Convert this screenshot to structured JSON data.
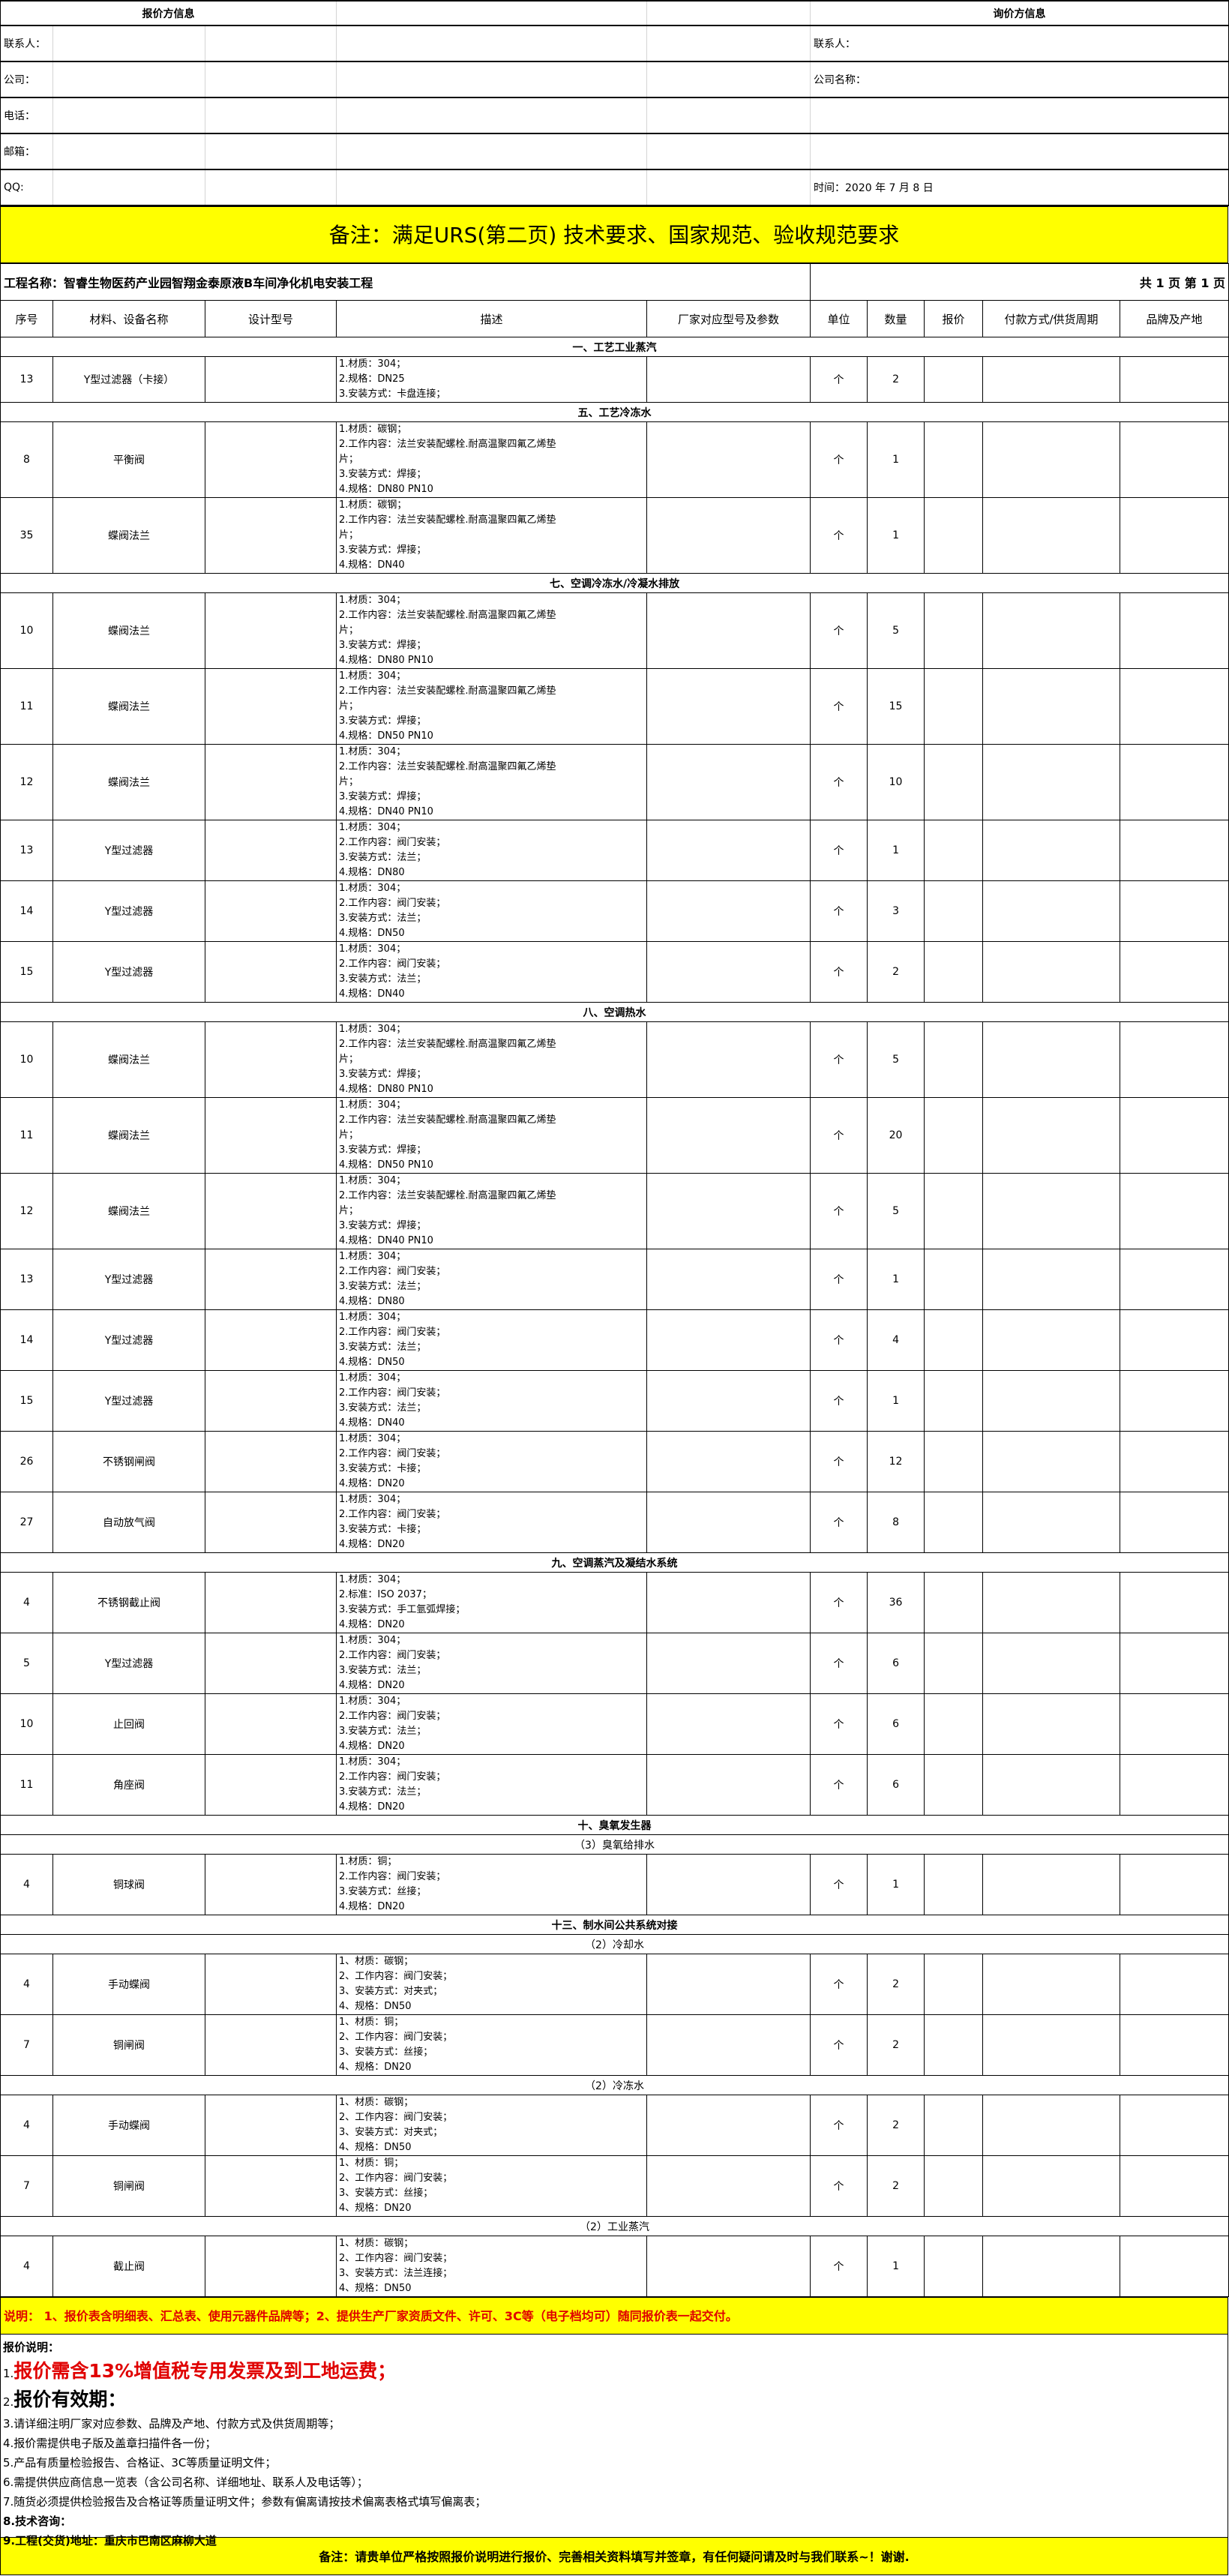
{
  "info": {
    "quoter_title": "报价方信息",
    "inquirer_title": "询价方信息",
    "left": [
      "联系人：",
      "公司：",
      "电话：",
      "邮箱：",
      "QQ:"
    ],
    "right": [
      "联系人：",
      "公司名称：",
      "",
      "",
      "时间：2020 年 7 月  8  日"
    ]
  },
  "banner": "备注：满足URS(第二页) 技术要求、国家规范、验收规范要求",
  "project": {
    "name": "工程名称：智睿生物医药产业园智翔金泰原液B车间净化机电安装工程",
    "pages": "共 1 页   第 1 页"
  },
  "columns": [
    "序号",
    "材料、设备名称",
    "设计型号",
    "描述",
    "厂家对应型号及参数",
    "单位",
    "数量",
    "报价",
    "付款方式/供货周期",
    "品牌及产地"
  ],
  "table": {
    "rows": [
      {
        "type": "section",
        "label": "一、工艺工业蒸汽"
      },
      {
        "type": "item",
        "no": "13",
        "name": "Y型过滤器（卡接）",
        "desc": [
          "1.材质：304；",
          "2.规格：DN25",
          "3.安装方式：卡盘连接；"
        ],
        "unit": "个",
        "qty": "2"
      },
      {
        "type": "section",
        "label": "五、工艺冷冻水"
      },
      {
        "type": "item",
        "no": "8",
        "name": "平衡阀",
        "desc": [
          "1.材质：碳钢；",
          "2.工作内容：法兰安装配螺栓.耐高温聚四氟乙烯垫",
          "片；",
          "3.安装方式：焊接；",
          "4.规格：DN80  PN10"
        ],
        "unit": "个",
        "qty": "1"
      },
      {
        "type": "item",
        "no": "35",
        "name": "蝶阀法兰",
        "desc": [
          "1.材质：碳钢；",
          "2.工作内容：法兰安装配螺栓.耐高温聚四氟乙烯垫",
          "片；",
          "3.安装方式：焊接；",
          "4.规格：DN40"
        ],
        "unit": "个",
        "qty": "1"
      },
      {
        "type": "section",
        "label": "七、空调冷冻水/冷凝水排放"
      },
      {
        "type": "item",
        "no": "10",
        "name": "蝶阀法兰",
        "desc": [
          "1.材质：304；",
          "2.工作内容：法兰安装配螺栓.耐高温聚四氟乙烯垫",
          "片；",
          "3.安装方式：焊接；",
          "4.规格：DN80  PN10"
        ],
        "unit": "个",
        "qty": "5"
      },
      {
        "type": "item",
        "no": "11",
        "name": "蝶阀法兰",
        "desc": [
          "1.材质：304；",
          "2.工作内容：法兰安装配螺栓.耐高温聚四氟乙烯垫",
          "片；",
          "3.安装方式：焊接；",
          "4.规格：DN50  PN10"
        ],
        "unit": "个",
        "qty": "15"
      },
      {
        "type": "item",
        "no": "12",
        "name": "蝶阀法兰",
        "desc": [
          "1.材质：304；",
          "2.工作内容：法兰安装配螺栓.耐高温聚四氟乙烯垫",
          "片；",
          "3.安装方式：焊接；",
          "4.规格：DN40  PN10"
        ],
        "unit": "个",
        "qty": "10"
      },
      {
        "type": "item",
        "no": "13",
        "name": "Y型过滤器",
        "desc": [
          "1.材质：304；",
          "2.工作内容：阀门安装；",
          "3.安装方式：法兰；",
          "4.规格：DN80"
        ],
        "unit": "个",
        "qty": "1"
      },
      {
        "type": "item",
        "no": "14",
        "name": "Y型过滤器",
        "desc": [
          "1.材质：304；",
          "2.工作内容：阀门安装；",
          "3.安装方式：法兰；",
          "4.规格：DN50"
        ],
        "unit": "个",
        "qty": "3"
      },
      {
        "type": "item",
        "no": "15",
        "name": "Y型过滤器",
        "desc": [
          "1.材质：304；",
          "2.工作内容：阀门安装；",
          "3.安装方式：法兰；",
          "4.规格：DN40"
        ],
        "unit": "个",
        "qty": "2"
      },
      {
        "type": "section",
        "label": "八、空调热水"
      },
      {
        "type": "item",
        "no": "10",
        "name": "蝶阀法兰",
        "desc": [
          "1.材质：304；",
          "2.工作内容：法兰安装配螺栓.耐高温聚四氟乙烯垫",
          "片；",
          "3.安装方式：焊接；",
          "4.规格：DN80  PN10"
        ],
        "unit": "个",
        "qty": "5"
      },
      {
        "type": "item",
        "no": "11",
        "name": "蝶阀法兰",
        "desc": [
          "1.材质：304；",
          "2.工作内容：法兰安装配螺栓.耐高温聚四氟乙烯垫",
          "片；",
          "3.安装方式：焊接；",
          "4.规格：DN50  PN10"
        ],
        "unit": "个",
        "qty": "20"
      },
      {
        "type": "item",
        "no": "12",
        "name": "蝶阀法兰",
        "desc": [
          "1.材质：304；",
          "2.工作内容：法兰安装配螺栓.耐高温聚四氟乙烯垫",
          "片；",
          "3.安装方式：焊接；",
          "4.规格：DN40  PN10"
        ],
        "unit": "个",
        "qty": "5"
      },
      {
        "type": "item",
        "no": "13",
        "name": "Y型过滤器",
        "desc": [
          "1.材质：304；",
          "2.工作内容：阀门安装；",
          "3.安装方式：法兰；",
          "4.规格：DN80"
        ],
        "unit": "个",
        "qty": "1"
      },
      {
        "type": "item",
        "no": "14",
        "name": "Y型过滤器",
        "desc": [
          "1.材质：304；",
          "2.工作内容：阀门安装；",
          "3.安装方式：法兰；",
          "4.规格：DN50"
        ],
        "unit": "个",
        "qty": "4"
      },
      {
        "type": "item",
        "no": "15",
        "name": "Y型过滤器",
        "desc": [
          "1.材质：304；",
          "2.工作内容：阀门安装；",
          "3.安装方式：法兰；",
          "4.规格：DN40"
        ],
        "unit": "个",
        "qty": "1"
      },
      {
        "type": "item",
        "no": "26",
        "name": "不锈钢闸阀",
        "desc": [
          "1.材质：304；",
          "2.工作内容：阀门安装；",
          "3.安装方式：卡接；",
          "4.规格：DN20"
        ],
        "unit": "个",
        "qty": "12"
      },
      {
        "type": "item",
        "no": "27",
        "name": "自动放气阀",
        "desc": [
          "1.材质：304；",
          "2.工作内容：阀门安装；",
          "3.安装方式：卡接；",
          "4.规格：DN20"
        ],
        "unit": "个",
        "qty": "8"
      },
      {
        "type": "section",
        "label": "九、空调蒸汽及凝结水系统"
      },
      {
        "type": "item",
        "no": "4",
        "name": "不锈钢截止阀",
        "desc": [
          "1.材质：304；",
          "2.标准：ISO 2037；",
          "3.安装方式：手工氩弧焊接；",
          "4.规格：DN20"
        ],
        "unit": "个",
        "qty": "36"
      },
      {
        "type": "item",
        "no": "5",
        "name": "Y型过滤器",
        "desc": [
          "1.材质：304；",
          "2.工作内容：阀门安装；",
          "3.安装方式：法兰；",
          "4.规格：DN20"
        ],
        "unit": "个",
        "qty": "6"
      },
      {
        "type": "item",
        "no": "10",
        "name": "止回阀",
        "desc": [
          "1.材质：304；",
          "2.工作内容：阀门安装；",
          "3.安装方式：法兰；",
          "4.规格：DN20"
        ],
        "unit": "个",
        "qty": "6"
      },
      {
        "type": "item",
        "no": "11",
        "name": "角座阀",
        "desc": [
          "1.材质：304；",
          "2.工作内容：阀门安装；",
          "3.安装方式：法兰；",
          "4.规格：DN20"
        ],
        "unit": "个",
        "qty": "6"
      },
      {
        "type": "section",
        "label": "十、臭氧发生器"
      },
      {
        "type": "subsection",
        "label": "（3）臭氧给排水"
      },
      {
        "type": "item",
        "no": "4",
        "name": "铜球阀",
        "desc": [
          "1.材质：铜；",
          "2.工作内容：阀门安装；",
          "3.安装方式：丝接；",
          "4.规格：DN20"
        ],
        "unit": "个",
        "qty": "1"
      },
      {
        "type": "section",
        "label": "十三、制水间公共系统对接"
      },
      {
        "type": "subsection",
        "label": "（2）冷却水"
      },
      {
        "type": "item",
        "no": "4",
        "name": "手动蝶阀",
        "desc": [
          "1、材质：碳钢；",
          "2、工作内容：阀门安装；",
          "3、安装方式：对夹式；",
          "4、规格：DN50"
        ],
        "unit": "个",
        "qty": "2"
      },
      {
        "type": "item",
        "no": "7",
        "name": "铜闸阀",
        "desc": [
          "1、材质：铜；",
          "2、工作内容：阀门安装；",
          "3、安装方式：丝接；",
          "4、规格：DN20"
        ],
        "unit": "个",
        "qty": "2"
      },
      {
        "type": "subsection",
        "label": "（2）冷冻水"
      },
      {
        "type": "item",
        "no": "4",
        "name": "手动蝶阀",
        "desc": [
          "1、材质：碳钢；",
          "2、工作内容：阀门安装；",
          "3、安装方式：对夹式；",
          "4、规格：DN50"
        ],
        "unit": "个",
        "qty": "2"
      },
      {
        "type": "item",
        "no": "7",
        "name": "铜闸阀",
        "desc": [
          "1、材质：铜；",
          "2、工作内容：阀门安装；",
          "3、安装方式：丝接；",
          "4、规格：DN20"
        ],
        "unit": "个",
        "qty": "2"
      },
      {
        "type": "subsection",
        "label": "（2）工业蒸汽"
      },
      {
        "type": "item",
        "no": "4",
        "name": "截止阀",
        "desc": [
          "1、材质：碳钢；",
          "2、工作内容：阀门安装；",
          "3、安装方式：法兰连接；",
          "4、规格：DN50"
        ],
        "unit": "个",
        "qty": "1"
      }
    ]
  },
  "remark": "说明： 1、报价表含明细表、汇总表、使用元器件品牌等；2、提供生产厂家资质文件、许可、3C等（电子档均可）随同报价表一起交付。",
  "notes": {
    "title": "报价说明：",
    "lines": [
      {
        "prefix": "1.",
        "text": "报价需含13%增值税专用发票及到工地运费；"
      },
      {
        "prefix": "2.",
        "text": "报价有效期："
      },
      {
        "prefix": "",
        "text": "3.请详细注明厂家对应参数、品牌及产地、付款方式及供货周期等；"
      },
      {
        "prefix": "",
        "text": "4.报价需提供电子版及盖章扫描件各一份；"
      },
      {
        "prefix": "",
        "text": "5.产品有质量检验报告、合格证、3C等质量证明文件；"
      },
      {
        "prefix": "",
        "text": "6.需提供供应商信息一览表（含公司名称、详细地址、联系人及电话等）；"
      },
      {
        "prefix": "",
        "text": "7.随货必须提供检验报告及合格证等质量证明文件；参数有偏离请按技术偏离表格式填写偏离表；"
      },
      {
        "prefix": "",
        "text": "8.技术咨询："
      },
      {
        "prefix": "",
        "text": "9.工程(交货)地址：重庆市巴南区麻柳大道"
      }
    ]
  },
  "footer": "备注：请贵单位严格按照报价说明进行报价、完善相关资料填写并签章，有任何疑问请及时与我们联系~！谢谢.",
  "colors": {
    "highlight": "#ffff00",
    "warning_text": "#e00000"
  }
}
